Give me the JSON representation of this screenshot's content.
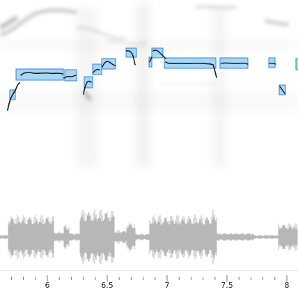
{
  "app": {
    "view": "pitch-annotation-editor",
    "colors": {
      "note_fill": "#8cc8f0",
      "note_stroke": "#2f86d6",
      "pitch_curve": "#1a1a1a",
      "waveform": "#b7b7b7",
      "spectrogram_ink": "#000000",
      "tick": "#666666"
    }
  },
  "timeline": {
    "unit": "seconds",
    "labels": [
      "6",
      "6.5",
      "7",
      "7.5",
      "8"
    ],
    "label_values": [
      6.0,
      6.5,
      7.0,
      7.5,
      8.0
    ],
    "minor_step": 0.1
  }
}
